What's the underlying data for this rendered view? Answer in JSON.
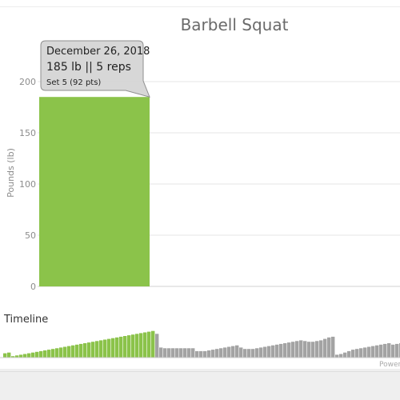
{
  "chart_data": {
    "type": "bar",
    "title": "Barbell Squat",
    "ylabel": "Pounds (lb)",
    "ylim": [
      0,
      200
    ],
    "yticks": [
      "0",
      "50",
      "100",
      "150",
      "200"
    ],
    "grid": true,
    "values": [
      185
    ],
    "bar_color": "#8bc34a",
    "tooltip": {
      "date": "December 26, 2018",
      "main": "185 lb || 5 reps",
      "sub": "Set 5 (92 pts)"
    },
    "timeline": {
      "label": "Timeline",
      "selected_color": "#8bc34a",
      "bar_color": "#a3a3a3",
      "values": [
        12,
        14,
        4,
        6,
        8,
        10,
        12,
        14,
        16,
        18,
        20,
        22,
        24,
        26,
        28,
        30,
        32,
        34,
        36,
        38,
        40,
        42,
        44,
        46,
        48,
        50,
        52,
        54,
        56,
        58,
        60,
        62,
        64,
        66,
        68,
        70,
        72,
        74,
        66,
        28,
        26,
        26,
        26,
        26,
        26,
        26,
        26,
        26,
        18,
        18,
        18,
        20,
        22,
        24,
        26,
        28,
        30,
        32,
        34,
        28,
        24,
        24,
        24,
        26,
        28,
        30,
        32,
        34,
        36,
        38,
        40,
        42,
        44,
        46,
        48,
        46,
        44,
        44,
        46,
        48,
        52,
        56,
        58,
        8,
        10,
        14,
        18,
        22,
        24,
        26,
        28,
        30,
        32,
        34,
        36,
        38,
        40,
        36,
        38,
        40,
        42
      ],
      "selected_count": 38
    },
    "credit": "Powere"
  }
}
